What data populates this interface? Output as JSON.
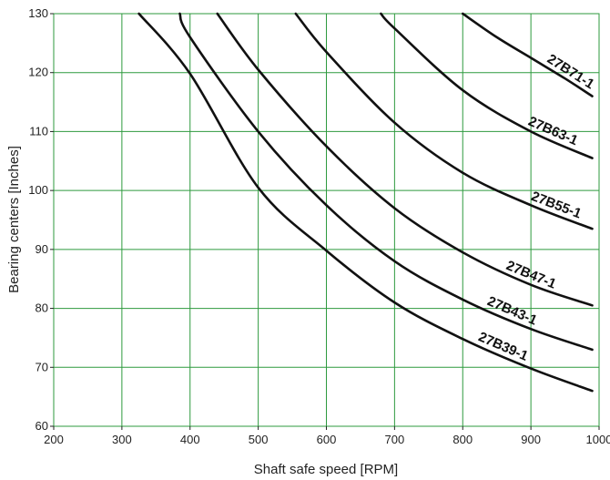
{
  "chart_data": {
    "type": "line",
    "xlabel": "Shaft safe speed [RPM]",
    "ylabel": "Bearing centers [Inches]",
    "xlim": [
      200,
      1000
    ],
    "ylim": [
      60,
      130
    ],
    "x_ticks": [
      "200",
      "300",
      "400",
      "500",
      "600",
      "700",
      "800",
      "900",
      "1000"
    ],
    "y_ticks": [
      "60",
      "70",
      "80",
      "90",
      "100",
      "110",
      "120",
      "130"
    ],
    "grid": true,
    "grid_color": "#2e9a3e",
    "line_color": "#111111",
    "series": [
      {
        "name": "27B39-1",
        "x": [
          325,
          400,
          500,
          600,
          700,
          800,
          900,
          990
        ],
        "y": [
          130,
          119.8,
          100.5,
          89.8,
          81.0,
          74.8,
          69.8,
          66.0
        ]
      },
      {
        "name": "27B43-1",
        "x": [
          385,
          400,
          500,
          600,
          700,
          800,
          900,
          990
        ],
        "y": [
          130,
          126.0,
          110.0,
          97.5,
          88.0,
          81.5,
          76.5,
          73.0
        ]
      },
      {
        "name": "27B47-1",
        "x": [
          440,
          500,
          600,
          700,
          800,
          900,
          990
        ],
        "y": [
          130,
          120.5,
          107.5,
          97.0,
          89.5,
          84.0,
          80.5
        ]
      },
      {
        "name": "27B55-1",
        "x": [
          555,
          600,
          700,
          800,
          900,
          990
        ],
        "y": [
          130,
          123.5,
          111.5,
          103.0,
          97.5,
          93.5
        ]
      },
      {
        "name": "27B63-1",
        "x": [
          680,
          700,
          800,
          900,
          990
        ],
        "y": [
          130,
          127.5,
          117.0,
          110.0,
          105.5
        ]
      },
      {
        "name": "27B71-1",
        "x": [
          800,
          850,
          900,
          950,
          990
        ],
        "y": [
          130,
          126.0,
          122.5,
          119.0,
          116.0
        ]
      }
    ]
  }
}
